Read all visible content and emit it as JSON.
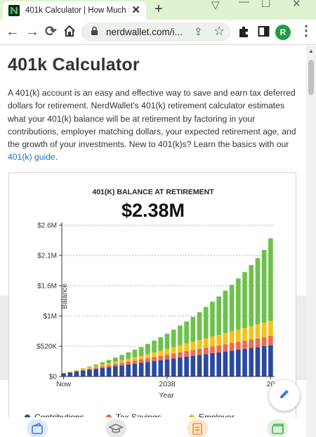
{
  "browser": {
    "tab_title": "401k Calculator | How Much S",
    "new_tab": "+",
    "close": "✕",
    "url": "nerdwallet.com/i...",
    "profile_initial": "R"
  },
  "page": {
    "title": "401k Calculator",
    "intro_text": "A 401(k) account is an easy and effective way to save and earn tax deferred dollars for retirement. NerdWallet's 401(k) retirement calculator estimates what your 401(k) balance will be at retirement by factoring in your contributions, employer matching dollars, your expected retirement age, and the growth of your investments. New to 401(k)s? Learn the basics with our ",
    "intro_link": "401(k) guide",
    "intro_end": "."
  },
  "chart_data": {
    "type": "bar",
    "stacked": true,
    "title": "401(K) BALANCE AT RETIREMENT",
    "subtitle": "$2.38M",
    "xlabel": "Year",
    "ylabel": "Balance",
    "x_ticks": [
      "Now",
      "2038",
      "20"
    ],
    "y_ticks": [
      "$0",
      "$520K",
      "$1M",
      "$1.6M",
      "$2.1M",
      "$2.6M"
    ],
    "y_tick_values": [
      0,
      520,
      1040,
      1560,
      2080,
      2600
    ],
    "ylim": [
      0,
      2600
    ],
    "grid": true,
    "colors": {
      "contributions": "#2a4aa0",
      "tax_savings": "#ef6a4e",
      "employer": "#f5c21b",
      "growth": "#6cc14a"
    },
    "series": [
      {
        "name": "Contributions",
        "values": [
          55,
          70,
          85,
          100,
          115,
          130,
          145,
          160,
          175,
          190,
          205,
          220,
          235,
          250,
          265,
          280,
          295,
          310,
          325,
          340,
          355,
          370,
          385,
          400,
          415,
          430,
          445,
          460,
          475,
          490,
          505,
          520,
          535
        ]
      },
      {
        "name": "Tax Savings",
        "values": [
          0,
          5,
          10,
          15,
          20,
          25,
          30,
          35,
          40,
          45,
          50,
          55,
          60,
          65,
          70,
          75,
          80,
          85,
          90,
          95,
          100,
          105,
          110,
          115,
          120,
          125,
          130,
          135,
          140,
          145,
          150,
          155,
          160
        ]
      },
      {
        "name": "Employer",
        "values": [
          0,
          5,
          10,
          15,
          20,
          25,
          30,
          35,
          40,
          45,
          50,
          55,
          60,
          70,
          80,
          90,
          100,
          110,
          120,
          130,
          140,
          150,
          160,
          170,
          180,
          190,
          200,
          210,
          220,
          230,
          240,
          250,
          260
        ]
      },
      {
        "name": "",
        "values": [
          0,
          2,
          5,
          10,
          15,
          25,
          40,
          55,
          70,
          90,
          110,
          130,
          150,
          175,
          200,
          230,
          260,
          300,
          340,
          380,
          430,
          480,
          540,
          600,
          660,
          730,
          800,
          880,
          960,
          1050,
          1140,
          1250,
          1420
        ]
      }
    ],
    "legend_entries": [
      "Contributions",
      "Tax Savings",
      "Employer"
    ]
  }
}
